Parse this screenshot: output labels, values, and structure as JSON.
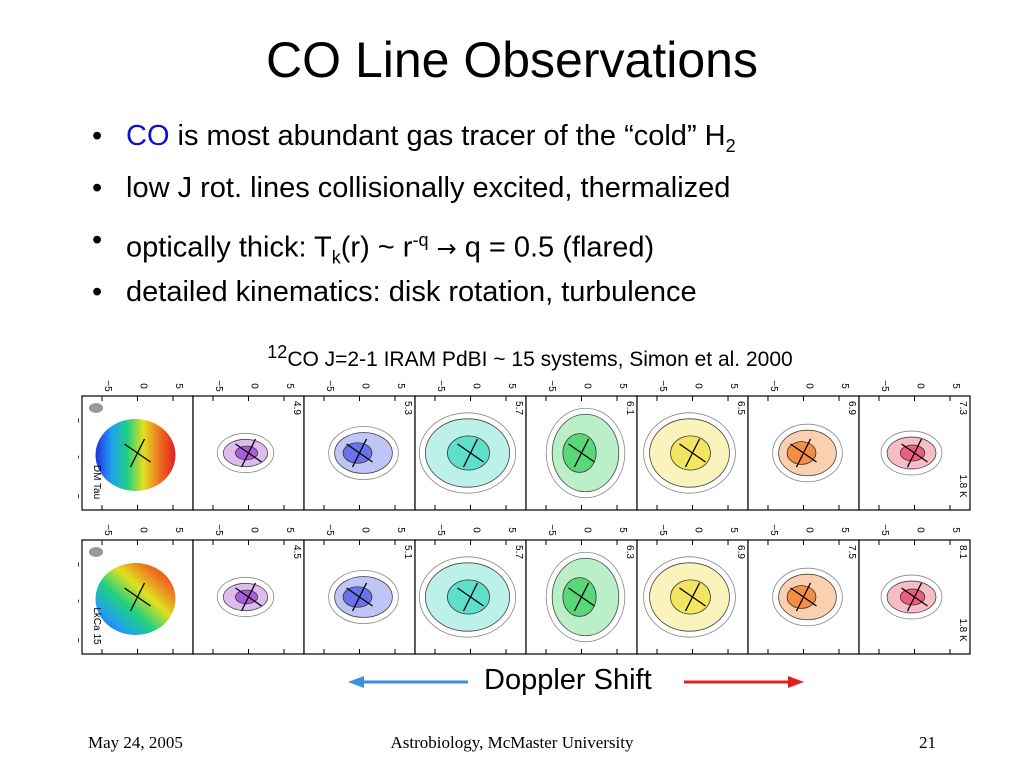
{
  "slide": {
    "title": "CO Line Observations",
    "bullets": [
      {
        "blue_prefix": "CO",
        "text": " is most abundant gas tracer of the “cold” H",
        "sub": "2"
      },
      {
        "text": "low J rot. lines collisionally excited, thermalized"
      },
      {
        "text_a": "optically thick: T",
        "sub": "k",
        "text_b": "(r) ~ r",
        "sup": "-q",
        "text_c": " q = 0.5 (flared)"
      },
      {
        "text": "detailed kinematics: disk rotation, turbulence"
      }
    ],
    "caption": {
      "sup": "12",
      "text": "CO J=2-1 IRAM PdBI ~ 15 systems, Simon et al.  2000"
    },
    "doppler_label": "Doppler Shift"
  },
  "figure": {
    "tick_labels": [
      "−5",
      "0",
      "5"
    ],
    "rows": [
      {
        "source": "DM Tau",
        "level": "1.8 K",
        "velocities": [
          "4.9",
          "5.3",
          "5.7",
          "6.1",
          "6.5",
          "6.9",
          "7.3"
        ]
      },
      {
        "source": "LkCa 15",
        "level": "1.8 K",
        "velocities": [
          "4.5",
          "5.1",
          "5.7",
          "6.3",
          "6.9",
          "7.5",
          "8.1"
        ]
      }
    ]
  },
  "colors": {
    "co_text": "#1010cc",
    "arrow_blue": "#3b8fe0",
    "arrow_red": "#e02020",
    "channel_fills": [
      "#9a3fd0",
      "#4a5ae8",
      "#40d8c0",
      "#38d060",
      "#f0e040",
      "#f07820",
      "#e84060"
    ]
  },
  "footer": {
    "date": "May 24, 2005",
    "center": "Astrobiology, McMaster University",
    "page": "21"
  }
}
